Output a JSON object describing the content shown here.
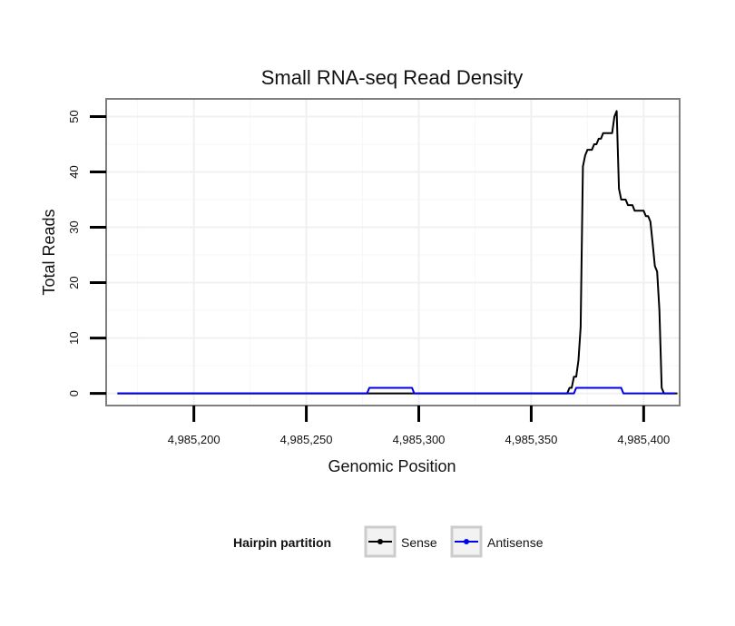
{
  "chart_data": {
    "type": "line",
    "title": "Small RNA-seq Read Density",
    "xlabel": "Genomic Position",
    "ylabel": "Total Reads",
    "xlim": [
      4985161,
      4985416
    ],
    "ylim": [
      -2.2,
      53.2
    ],
    "x_ticks": [
      4985200,
      4985250,
      4985300,
      4985350,
      4985400
    ],
    "x_tick_labels": [
      "4,985,200",
      "4,985,250",
      "4,985,300",
      "4,985,350",
      "4,985,400"
    ],
    "y_ticks": [
      0,
      10,
      20,
      30,
      40,
      50
    ],
    "y_tick_labels": [
      "0",
      "10",
      "20",
      "30",
      "40",
      "50"
    ],
    "grid": true,
    "legend": {
      "title": "Hairpin partition",
      "position": "bottom"
    },
    "series": [
      {
        "name": "Sense",
        "color": "#000000",
        "x": [
          4985166,
          4985366,
          4985367,
          4985368,
          4985369,
          4985370,
          4985371,
          4985372,
          4985373,
          4985374,
          4985375,
          4985376,
          4985377,
          4985378,
          4985379,
          4985380,
          4985381,
          4985382,
          4985383,
          4985384,
          4985385,
          4985386,
          4985387,
          4985388,
          4985389,
          4985390,
          4985391,
          4985392,
          4985393,
          4985394,
          4985395,
          4985396,
          4985397,
          4985398,
          4985399,
          4985400,
          4985401,
          4985402,
          4985403,
          4985404,
          4985405,
          4985406,
          4985407,
          4985408,
          4985409,
          4985410,
          4985411,
          4985412,
          4985413,
          4985414,
          4985415
        ],
        "y": [
          0,
          0,
          1,
          1,
          3,
          3,
          6,
          12,
          41,
          43,
          44,
          44,
          44,
          45,
          45,
          46,
          46,
          47,
          47,
          47,
          47,
          47,
          50,
          51,
          37,
          35,
          35,
          35,
          34,
          34,
          34,
          33,
          33,
          33,
          33,
          33,
          32,
          32,
          31,
          27,
          23,
          22,
          15,
          1,
          0,
          0,
          0,
          0,
          0,
          0,
          0
        ]
      },
      {
        "name": "Antisense",
        "color": "#0000ee",
        "x": [
          4985166,
          4985277,
          4985278,
          4985297,
          4985298,
          4985369,
          4985370,
          4985390,
          4985391,
          4985414
        ],
        "y": [
          0,
          0,
          1,
          1,
          0,
          0,
          1,
          1,
          0,
          0
        ]
      }
    ]
  }
}
